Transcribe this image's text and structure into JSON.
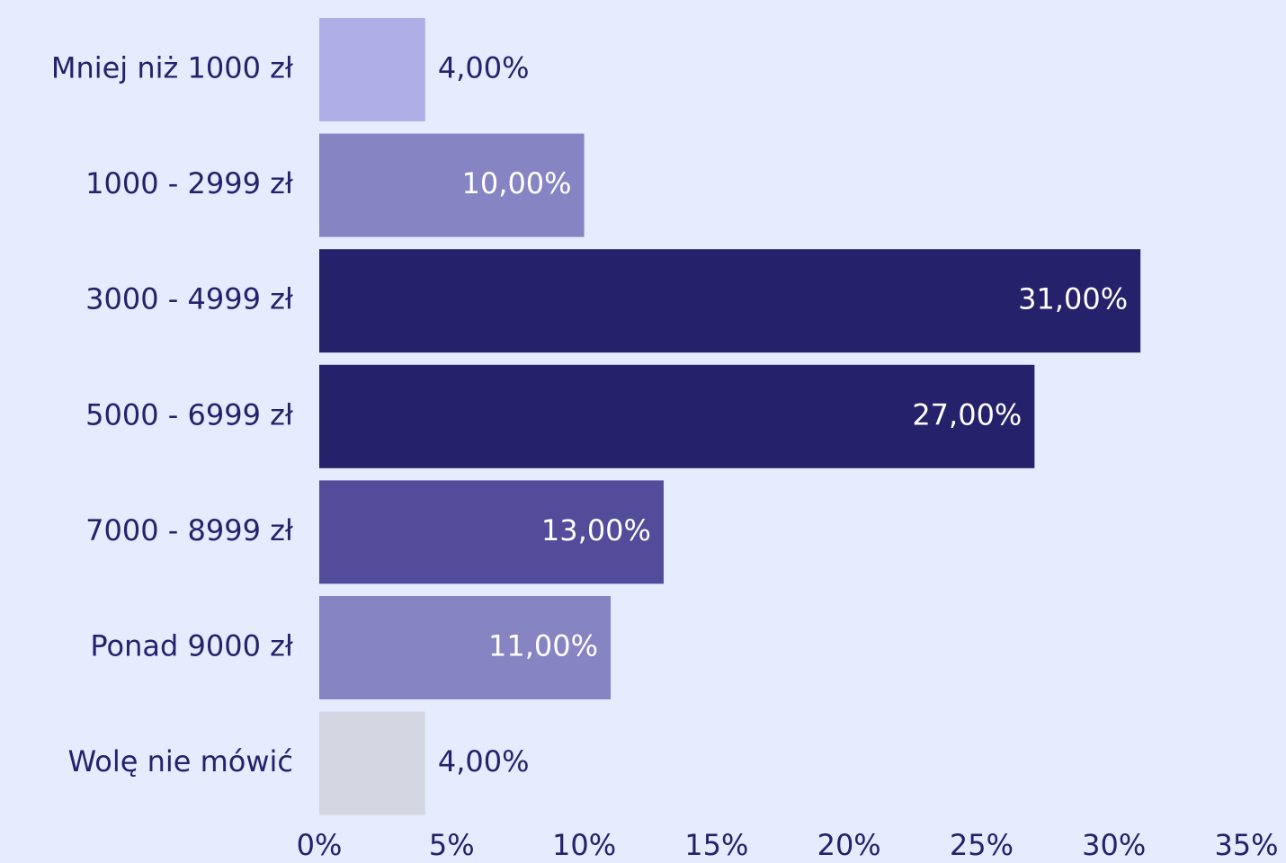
{
  "chart_data": {
    "type": "hbar",
    "categories": [
      "Mniej niż 1000 zł",
      "1000 - 2999 zł",
      "3000 - 4999 zł",
      "5000 - 6999 zł",
      "7000 - 8999 zł",
      "Ponad 9000 zł",
      "Wolę nie mówić"
    ],
    "values": [
      4,
      10,
      31,
      27,
      13,
      11,
      4
    ],
    "value_labels": [
      "4,00%",
      "10,00%",
      "31,00%",
      "27,00%",
      "13,00%",
      "11,00%",
      "4,00%"
    ],
    "colors": [
      "#b0aee6",
      "#8784c4",
      "#25216a",
      "#25216a",
      "#524c9b",
      "#8784c4",
      "#d4d6e2"
    ],
    "xlim": [
      0,
      35
    ],
    "xticks": [
      {
        "value": 0,
        "label": "0%"
      },
      {
        "value": 5,
        "label": "5%"
      },
      {
        "value": 10,
        "label": "10%"
      },
      {
        "value": 15,
        "label": "15%"
      },
      {
        "value": 20,
        "label": "20%"
      },
      {
        "value": 25,
        "label": "25%"
      },
      {
        "value": 30,
        "label": "30%"
      },
      {
        "value": 35,
        "label": "35%"
      }
    ],
    "grid": false
  }
}
